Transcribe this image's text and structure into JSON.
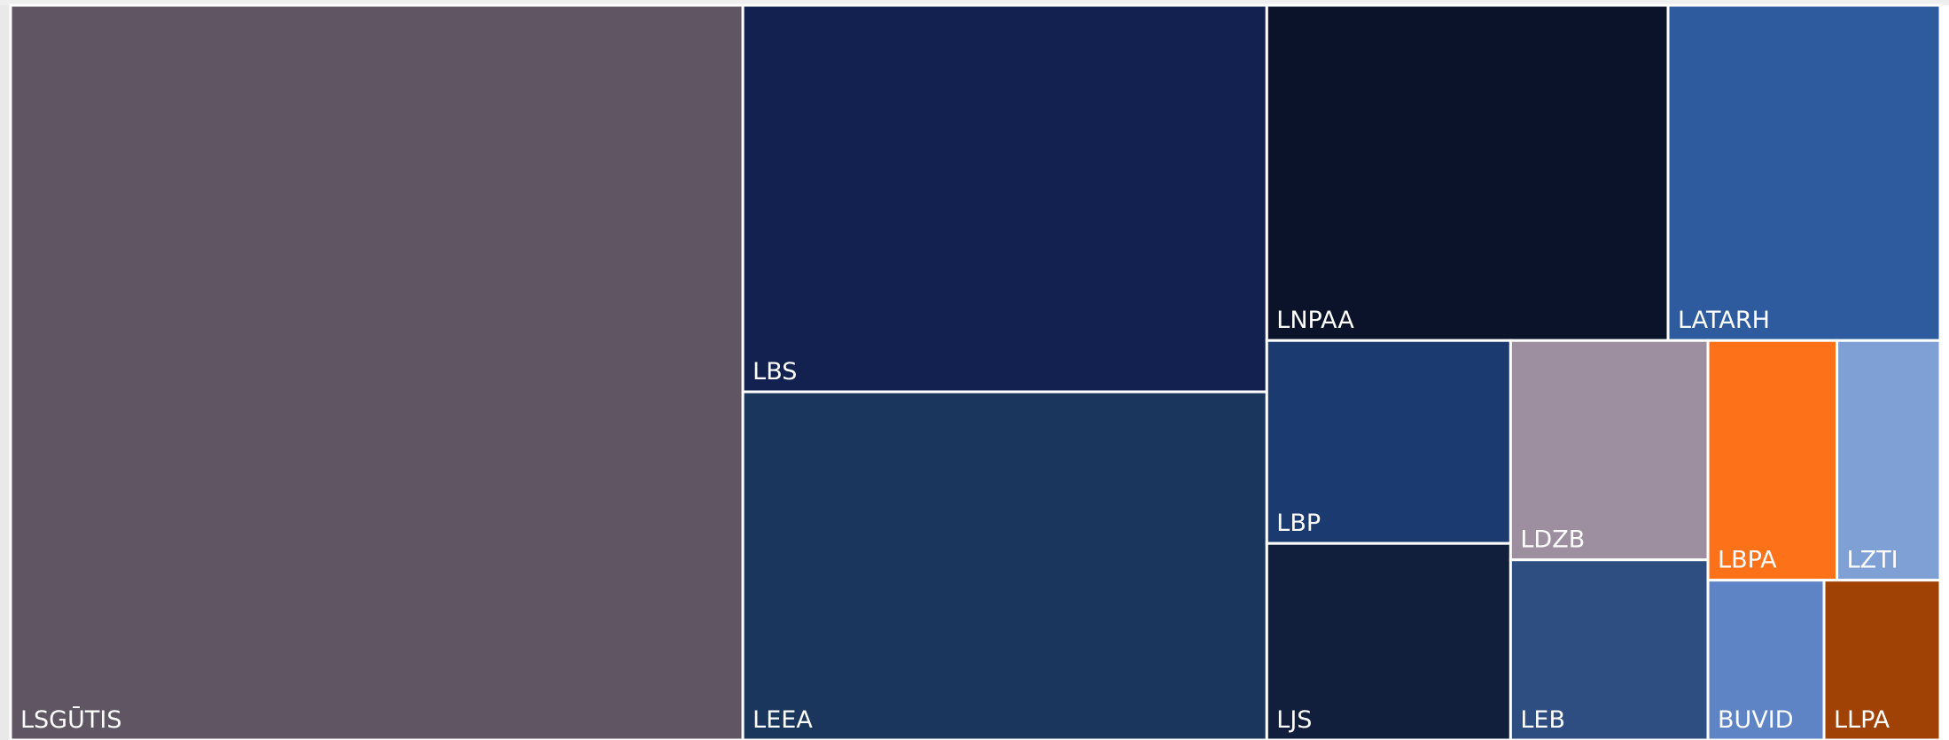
{
  "chart_data": {
    "type": "treemap",
    "categories": [
      "LSGŪTIS",
      "LBS",
      "LEEA",
      "LNPAA",
      "LATARH",
      "LBP",
      "LJS",
      "LDZB",
      "LEB",
      "LBPA",
      "LZTI",
      "BUVID",
      "LLPA"
    ],
    "values": [
      348,
      131,
      118,
      87,
      59,
      32,
      31,
      28,
      23,
      20,
      16,
      12,
      12
    ],
    "colors": [
      "#605563",
      "#12214f",
      "#1b365d",
      "#0b132b",
      "#2e5b9e",
      "#1b3a70",
      "#111f3c",
      "#9e8fa0",
      "#2e4d80",
      "#fd7119",
      "#7fa0d4",
      "#5e84c5",
      "#a04105"
    ]
  }
}
